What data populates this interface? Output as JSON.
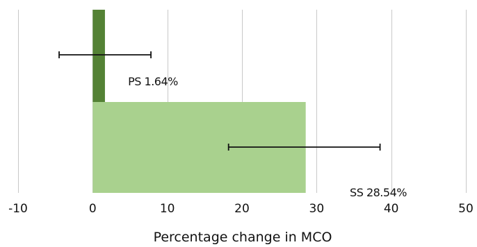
{
  "chart_data": {
    "type": "bar",
    "orientation": "horizontal",
    "title": "",
    "xlabel": "Percentage change in MCO",
    "ylabel": "",
    "xlim": [
      -10,
      50
    ],
    "x_ticks": [
      -10,
      0,
      10,
      20,
      30,
      40,
      50
    ],
    "x_tick_labels": [
      "-10",
      "0",
      "10",
      "20",
      "30",
      "40",
      "50"
    ],
    "grid": "vertical",
    "legend": "none",
    "bars": [
      {
        "label": "PS 1.64%",
        "value": 1.64,
        "error_low": -4.5,
        "error_high": 7.8,
        "color": "#548235"
      },
      {
        "label": "SS 28.54%",
        "value": 28.54,
        "error_low": 18.2,
        "error_high": 38.5,
        "color": "#a9d18e"
      }
    ]
  }
}
